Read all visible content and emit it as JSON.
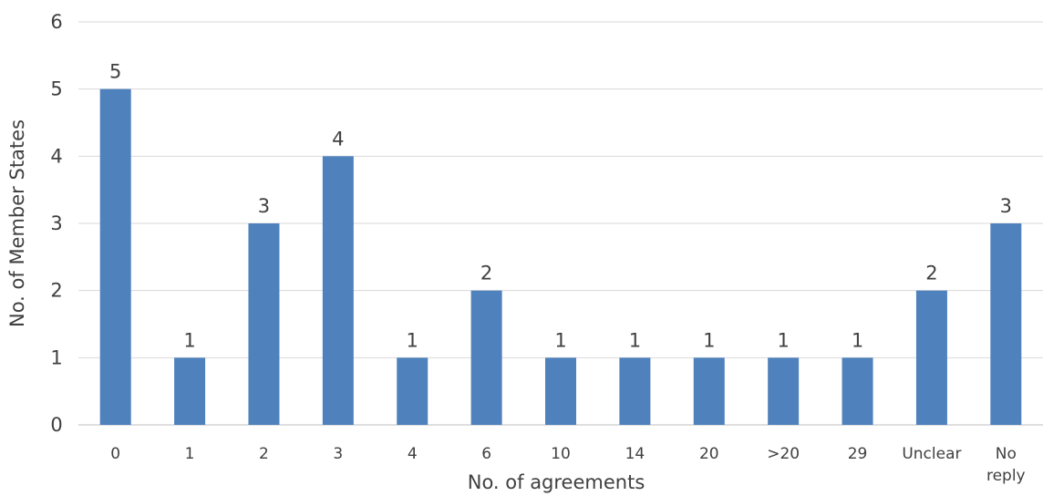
{
  "chart_data": {
    "type": "bar",
    "categories": [
      "0",
      "1",
      "2",
      "3",
      "4",
      "6",
      "10",
      "14",
      "20",
      ">20",
      "29",
      "Unclear",
      "No\nreply"
    ],
    "values": [
      5,
      1,
      3,
      4,
      1,
      2,
      1,
      1,
      1,
      1,
      1,
      2,
      3
    ],
    "title": "",
    "xlabel": "No. of agreements",
    "ylabel": "No. of Member States",
    "ylim": [
      0,
      6
    ],
    "yticks": [
      0,
      1,
      2,
      3,
      4,
      5,
      6
    ],
    "grid": true,
    "legend": "none",
    "data_labels": true,
    "bar_color": "#4f81bd"
  }
}
